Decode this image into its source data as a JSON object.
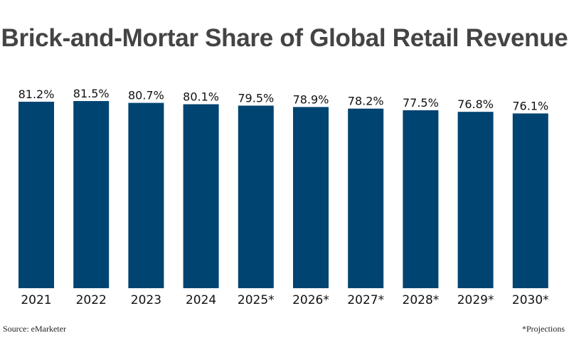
{
  "chart_data": {
    "type": "bar",
    "title": "Brick-and-Mortar Share of Global Retail Revenue",
    "categories": [
      "2021",
      "2022",
      "2023",
      "2024",
      "2025*",
      "2026*",
      "2027*",
      "2028*",
      "2029*",
      "2030*"
    ],
    "values": [
      81.2,
      81.5,
      80.7,
      80.1,
      79.5,
      78.9,
      78.2,
      77.5,
      76.8,
      76.1
    ],
    "value_labels": [
      "81.2%",
      "81.5%",
      "80.7%",
      "80.1%",
      "79.5%",
      "78.9%",
      "78.2%",
      "77.5%",
      "76.8%",
      "76.1%"
    ],
    "xlabel": "",
    "ylabel": "",
    "ylim": [
      0,
      81.5
    ],
    "grid": false,
    "legend": "none"
  },
  "colors": {
    "bar": "#004471",
    "title": "#444444",
    "text": "#111111"
  },
  "footer": {
    "source": "Source: eMarketer",
    "note": "*Projections"
  }
}
